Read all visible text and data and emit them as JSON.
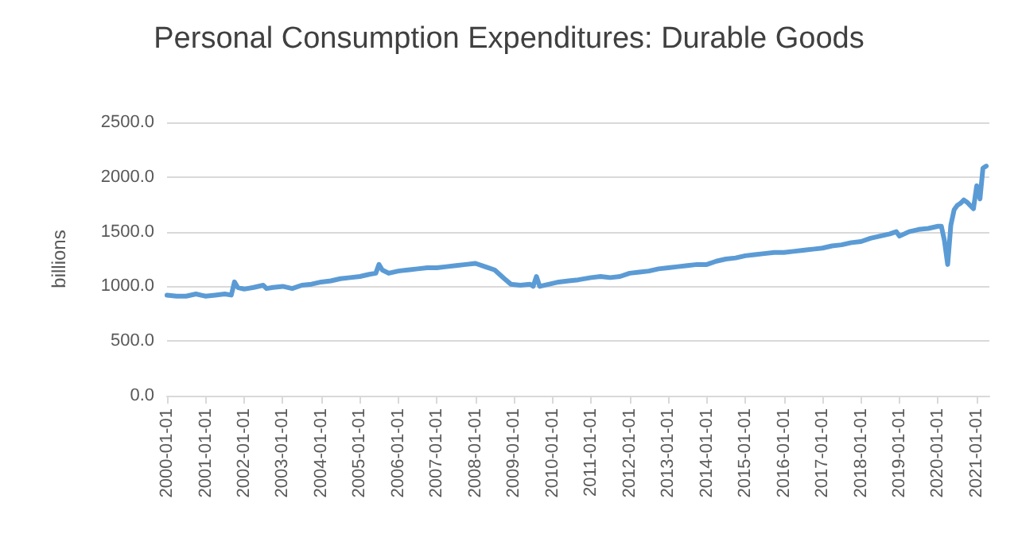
{
  "chart_data": {
    "type": "line",
    "title": "Personal Consumption Expenditures: Durable Goods",
    "ylabel": "billions",
    "x": [
      "2000-01",
      "2000-04",
      "2000-07",
      "2000-10",
      "2001-01",
      "2001-04",
      "2001-07",
      "2001-09",
      "2001-10",
      "2001-11",
      "2002-01",
      "2002-04",
      "2002-07",
      "2002-08",
      "2002-10",
      "2003-01",
      "2003-04",
      "2003-07",
      "2003-10",
      "2004-01",
      "2004-04",
      "2004-07",
      "2004-10",
      "2005-01",
      "2005-04",
      "2005-06",
      "2005-07",
      "2005-08",
      "2005-10",
      "2006-01",
      "2006-04",
      "2006-07",
      "2006-10",
      "2007-01",
      "2007-04",
      "2007-07",
      "2007-10",
      "2008-01",
      "2008-04",
      "2008-07",
      "2008-10",
      "2008-12",
      "2009-03",
      "2009-06",
      "2009-07",
      "2009-08",
      "2009-09",
      "2009-12",
      "2010-03",
      "2010-06",
      "2010-09",
      "2011-01",
      "2011-04",
      "2011-07",
      "2011-10",
      "2012-01",
      "2012-04",
      "2012-07",
      "2012-10",
      "2013-01",
      "2013-04",
      "2013-07",
      "2013-10",
      "2014-01",
      "2014-04",
      "2014-07",
      "2014-10",
      "2015-01",
      "2015-04",
      "2015-07",
      "2015-10",
      "2016-01",
      "2016-04",
      "2016-07",
      "2016-10",
      "2017-01",
      "2017-04",
      "2017-07",
      "2017-10",
      "2018-01",
      "2018-04",
      "2018-07",
      "2018-10",
      "2018-12",
      "2019-01",
      "2019-04",
      "2019-07",
      "2019-10",
      "2020-01",
      "2020-02",
      "2020-03",
      "2020-04",
      "2020-05",
      "2020-06",
      "2020-07",
      "2020-08",
      "2020-09",
      "2020-10",
      "2020-11",
      "2020-12",
      "2021-01",
      "2021-02",
      "2021-03",
      "2021-04"
    ],
    "series": [
      {
        "color": "#5b9bd5",
        "values": [
          920,
          910,
          910,
          930,
          910,
          920,
          930,
          920,
          1040,
          990,
          975,
          990,
          1010,
          980,
          990,
          1000,
          980,
          1010,
          1020,
          1040,
          1050,
          1070,
          1080,
          1090,
          1110,
          1120,
          1200,
          1150,
          1120,
          1140,
          1150,
          1160,
          1170,
          1170,
          1180,
          1190,
          1200,
          1210,
          1180,
          1150,
          1070,
          1020,
          1010,
          1020,
          1000,
          1090,
          1000,
          1020,
          1040,
          1050,
          1060,
          1080,
          1090,
          1080,
          1090,
          1120,
          1130,
          1140,
          1160,
          1170,
          1180,
          1190,
          1200,
          1200,
          1230,
          1250,
          1260,
          1280,
          1290,
          1300,
          1310,
          1310,
          1320,
          1330,
          1340,
          1350,
          1370,
          1380,
          1400,
          1410,
          1440,
          1460,
          1480,
          1500,
          1460,
          1500,
          1520,
          1530,
          1550,
          1550,
          1420,
          1200,
          1560,
          1700,
          1740,
          1760,
          1790,
          1770,
          1740,
          1710,
          1920,
          1800,
          2080,
          2100
        ]
      }
    ],
    "xlim": [
      "2000-01-01",
      "2021-05-01"
    ],
    "xticks": [
      {
        "value": "2000-01-01",
        "label": "2000-01-01"
      },
      {
        "value": "2001-01-01",
        "label": "2001-01-01"
      },
      {
        "value": "2002-01-01",
        "label": "2002-01-01"
      },
      {
        "value": "2003-01-01",
        "label": "2003-01-01"
      },
      {
        "value": "2004-01-01",
        "label": "2004-01-01"
      },
      {
        "value": "2005-01-01",
        "label": "2005-01-01"
      },
      {
        "value": "2006-01-01",
        "label": "2006-01-01"
      },
      {
        "value": "2007-01-01",
        "label": "2007-01-01"
      },
      {
        "value": "2008-01-01",
        "label": "2008-01-01"
      },
      {
        "value": "2009-01-01",
        "label": "2009-01-01"
      },
      {
        "value": "2010-01-01",
        "label": "2010-01-01"
      },
      {
        "value": "2011-01-01",
        "label": "2011-01-01"
      },
      {
        "value": "2012-01-01",
        "label": "2012-01-01"
      },
      {
        "value": "2013-01-01",
        "label": "2013-01-01"
      },
      {
        "value": "2014-01-01",
        "label": "2014-01-01"
      },
      {
        "value": "2015-01-01",
        "label": "2015-01-01"
      },
      {
        "value": "2016-01-01",
        "label": "2016-01-01"
      },
      {
        "value": "2017-01-01",
        "label": "2017-01-01"
      },
      {
        "value": "2018-01-01",
        "label": "2018-01-01"
      },
      {
        "value": "2019-01-01",
        "label": "2019-01-01"
      },
      {
        "value": "2020-01-01",
        "label": "2020-01-01"
      },
      {
        "value": "2021-01-01",
        "label": "2021-01-01"
      }
    ],
    "ylim": [
      0,
      2500
    ],
    "yticks": [
      {
        "value": 0,
        "label": "0.0"
      },
      {
        "value": 500,
        "label": "500.0"
      },
      {
        "value": 1000,
        "label": "1000.0"
      },
      {
        "value": 1500,
        "label": "1500.0"
      },
      {
        "value": 2000,
        "label": "2000.0"
      },
      {
        "value": 2500,
        "label": "2500.0"
      }
    ],
    "grid": "y",
    "marker": "none",
    "line_style": "solid"
  }
}
